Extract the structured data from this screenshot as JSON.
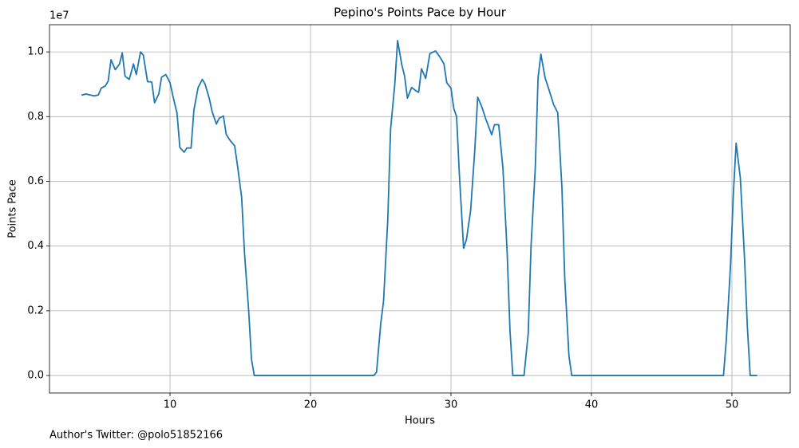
{
  "chart_data": {
    "type": "line",
    "title": "Pepino's Points Pace by Hour",
    "x_label": "Hours",
    "y_label": "Points Pace",
    "y_offset_label": "1e7",
    "footnote": "Author's Twitter: @polo51852166",
    "color": "#1f77b4",
    "grid": true,
    "x": [
      3.7,
      4.0,
      4.3,
      4.6,
      4.9,
      5.1,
      5.4,
      5.6,
      5.8,
      6.1,
      6.4,
      6.6,
      6.8,
      7.1,
      7.4,
      7.6,
      7.9,
      8.1,
      8.4,
      8.7,
      8.9,
      9.2,
      9.4,
      9.7,
      10.0,
      10.2,
      10.5,
      10.7,
      11.0,
      11.2,
      11.5,
      11.7,
      12.0,
      12.3,
      12.5,
      12.8,
      13.0,
      13.3,
      13.5,
      13.8,
      14.0,
      14.3,
      14.6,
      14.8,
      15.1,
      15.3,
      15.6,
      15.8,
      16.0,
      24.5,
      24.7,
      25.0,
      25.2,
      25.5,
      25.7,
      26.0,
      26.2,
      26.5,
      26.7,
      26.9,
      27.2,
      27.5,
      27.7,
      27.9,
      28.2,
      28.5,
      28.9,
      29.2,
      29.5,
      29.7,
      30.0,
      30.2,
      30.4,
      30.6,
      30.9,
      31.1,
      31.4,
      31.7,
      31.9,
      32.2,
      32.5,
      32.9,
      33.1,
      33.4,
      33.7,
      34.0,
      34.2,
      34.4,
      35.2,
      35.5,
      35.7,
      36.0,
      36.2,
      36.4,
      36.7,
      37.0,
      37.3,
      37.6,
      37.9,
      38.1,
      38.4,
      38.6,
      49.4,
      49.6,
      49.9,
      50.1,
      50.3,
      50.6,
      50.9,
      51.1,
      51.3,
      51.8
    ],
    "values": [
      0.866,
      0.87,
      0.867,
      0.864,
      0.867,
      0.888,
      0.895,
      0.91,
      0.976,
      0.945,
      0.962,
      0.997,
      0.925,
      0.915,
      0.963,
      0.93,
      1.0,
      0.99,
      0.908,
      0.907,
      0.843,
      0.87,
      0.922,
      0.93,
      0.905,
      0.865,
      0.81,
      0.705,
      0.69,
      0.703,
      0.703,
      0.82,
      0.89,
      0.915,
      0.9,
      0.855,
      0.815,
      0.777,
      0.795,
      0.802,
      0.745,
      0.725,
      0.71,
      0.65,
      0.55,
      0.38,
      0.2,
      0.05,
      0.0,
      0.0,
      0.01,
      0.16,
      0.23,
      0.48,
      0.76,
      0.9,
      1.035,
      0.96,
      0.925,
      0.857,
      0.89,
      0.88,
      0.875,
      0.948,
      0.918,
      0.995,
      1.003,
      0.985,
      0.963,
      0.905,
      0.888,
      0.825,
      0.8,
      0.62,
      0.393,
      0.42,
      0.51,
      0.7,
      0.86,
      0.83,
      0.79,
      0.744,
      0.775,
      0.775,
      0.64,
      0.38,
      0.14,
      0.0,
      0.0,
      0.13,
      0.4,
      0.64,
      0.92,
      0.993,
      0.92,
      0.88,
      0.838,
      0.812,
      0.58,
      0.3,
      0.06,
      0.0,
      0.0,
      0.11,
      0.34,
      0.56,
      0.718,
      0.61,
      0.36,
      0.15,
      0.0,
      0.0
    ],
    "xlim": [
      1.42,
      54.15
    ],
    "xticks": [
      10,
      20,
      30,
      40,
      50
    ],
    "ylim": [
      -0.054,
      1.084
    ],
    "yticks": [
      {
        "value": 0,
        "label": "0.0"
      },
      0.2,
      0.4,
      0.6,
      0.8,
      {
        "value": 1,
        "label": "1.0"
      }
    ]
  }
}
